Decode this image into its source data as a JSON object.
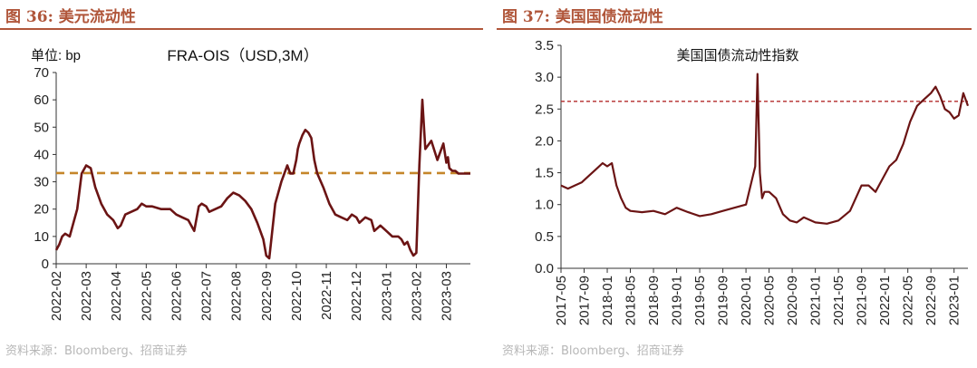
{
  "left": {
    "figure_title": "图 36:  美元流动性",
    "source": "资料来源：Bloomberg、招商证券"
  },
  "right": {
    "figure_title": "图 37:  美国国债流动性",
    "source": "资料来源：Bloomberg、招商证券"
  },
  "chart_data": [
    {
      "type": "line",
      "title": "FRA-OIS（USD,3M）",
      "unit_label": "单位:  bp",
      "ylim": [
        0,
        70
      ],
      "yticks": [
        0,
        10,
        20,
        30,
        40,
        50,
        60,
        70
      ],
      "xticks": [
        "2022-02",
        "2022-03",
        "2022-04",
        "2022-05",
        "2022-06",
        "2022-07",
        "2022-08",
        "2022-09",
        "2022-10",
        "2022-11",
        "2022-12",
        "2023-01",
        "2023-02",
        "2023-03"
      ],
      "xlim": [
        0,
        13.8
      ],
      "reference_line": 33.2,
      "colors": {
        "line": "#6b1414",
        "reference": "#c5862a"
      },
      "series": [
        {
          "name": "FRA-OIS (USD,3M)",
          "x": [
            0.0,
            0.1,
            0.2,
            0.3,
            0.45,
            0.55,
            0.7,
            0.85,
            1.0,
            1.15,
            1.3,
            1.5,
            1.7,
            1.9,
            2.05,
            2.15,
            2.3,
            2.5,
            2.7,
            2.85,
            3.0,
            3.2,
            3.5,
            3.8,
            4.0,
            4.2,
            4.4,
            4.6,
            4.75,
            4.85,
            5.0,
            5.1,
            5.3,
            5.5,
            5.7,
            5.9,
            6.1,
            6.3,
            6.5,
            6.7,
            6.9,
            7.0,
            7.1,
            7.3,
            7.5,
            7.7,
            7.8,
            7.9,
            8.0,
            8.05,
            8.1,
            8.2,
            8.3,
            8.4,
            8.5,
            8.6,
            8.7,
            8.9,
            9.1,
            9.3,
            9.5,
            9.7,
            9.85,
            10.0,
            10.1,
            10.3,
            10.5,
            10.6,
            10.8,
            11.0,
            11.2,
            11.4,
            11.5,
            11.6,
            11.7,
            11.8,
            11.9,
            12.0,
            12.1,
            12.2,
            12.3,
            12.5,
            12.7,
            12.9,
            13.0,
            13.05,
            13.1,
            13.2,
            13.3,
            13.4,
            13.5,
            13.6,
            13.7,
            13.75,
            13.8
          ],
          "values": [
            5,
            7,
            10,
            11,
            10,
            14,
            20,
            33,
            36,
            35,
            28,
            22,
            18,
            16,
            13,
            14,
            18,
            19,
            20,
            22,
            21,
            21,
            20,
            20,
            18,
            17,
            16,
            12,
            21,
            22,
            21,
            19,
            20,
            21,
            24,
            26,
            25,
            23,
            20,
            15,
            9,
            3,
            2,
            22,
            30,
            36,
            33,
            33,
            38,
            42,
            44,
            47,
            49,
            48,
            46,
            38,
            33,
            28,
            22,
            18,
            17,
            16,
            18,
            17,
            15,
            17,
            16,
            12,
            14,
            12,
            10,
            10,
            9,
            7,
            8,
            5,
            3,
            4,
            36,
            60,
            42,
            45,
            38,
            44,
            37,
            39,
            35,
            34,
            34,
            33,
            33,
            33,
            33,
            33,
            33
          ],
          "values_note": "approximate readings"
        }
      ]
    },
    {
      "type": "line",
      "title": "美国国债流动性指数",
      "ylim": [
        0.0,
        3.5
      ],
      "yticks": [
        "0.0",
        "0.5",
        "1.0",
        "1.5",
        "2.0",
        "2.5",
        "3.0",
        "3.5"
      ],
      "xticks": [
        "2017-05",
        "2017-09",
        "2018-01",
        "2018-05",
        "2018-09",
        "2019-01",
        "2019-05",
        "2019-09",
        "2020-01",
        "2020-05",
        "2020-09",
        "2021-01",
        "2021-05",
        "2021-09",
        "2022-01",
        "2022-05",
        "2022-09",
        "2023-01"
      ],
      "xlim": [
        0,
        17.6
      ],
      "reference_line": 2.62,
      "colors": {
        "line": "#6b1414",
        "reference": "#b32a2a"
      },
      "series": [
        {
          "name": "美国国债流动性指数",
          "x": [
            0,
            0.3,
            0.6,
            0.9,
            1.2,
            1.5,
            1.8,
            2.0,
            2.2,
            2.4,
            2.6,
            2.8,
            3.0,
            3.5,
            4.0,
            4.5,
            5.0,
            5.5,
            6.0,
            6.5,
            7.0,
            7.5,
            8.0,
            8.2,
            8.4,
            8.5,
            8.6,
            8.7,
            8.8,
            9.0,
            9.3,
            9.6,
            9.9,
            10.2,
            10.5,
            11.0,
            11.5,
            12.0,
            12.5,
            13.0,
            13.3,
            13.6,
            13.9,
            14.2,
            14.5,
            14.8,
            15.1,
            15.4,
            15.7,
            16.0,
            16.2,
            16.4,
            16.6,
            16.8,
            17.0,
            17.2,
            17.4,
            17.6
          ],
          "values": [
            1.3,
            1.25,
            1.3,
            1.35,
            1.45,
            1.55,
            1.65,
            1.6,
            1.65,
            1.3,
            1.1,
            0.95,
            0.9,
            0.88,
            0.9,
            0.85,
            0.95,
            0.88,
            0.82,
            0.85,
            0.9,
            0.95,
            1.0,
            1.3,
            1.6,
            3.05,
            1.5,
            1.1,
            1.2,
            1.2,
            1.1,
            0.85,
            0.75,
            0.72,
            0.8,
            0.72,
            0.7,
            0.75,
            0.9,
            1.3,
            1.3,
            1.2,
            1.4,
            1.6,
            1.7,
            1.95,
            2.3,
            2.55,
            2.65,
            2.75,
            2.85,
            2.7,
            2.5,
            2.45,
            2.35,
            2.4,
            2.75,
            2.55
          ],
          "values_note": "approximate readings"
        }
      ]
    }
  ]
}
